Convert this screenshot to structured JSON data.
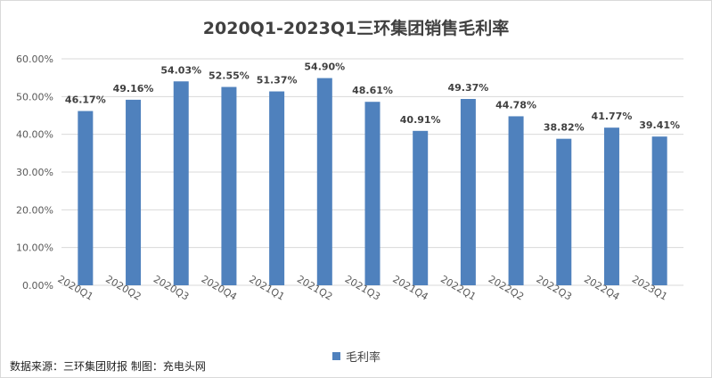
{
  "title": "2020Q1-2023Q1三环集团销售毛利率",
  "source_note": "数据来源：三环集团财报 制图：充电头网",
  "colors": {
    "bar": "#4f81bd",
    "grid": "#d9d9d9",
    "axis_text": "#595959",
    "label_text": "#404040"
  },
  "chart_data": {
    "type": "bar",
    "title": "2020Q1-2023Q1三环集团销售毛利率",
    "categories": [
      "2020Q1",
      "2020Q2",
      "2020Q3",
      "2020Q4",
      "2021Q1",
      "2021Q2",
      "2021Q3",
      "2021Q4",
      "2022Q1",
      "2022Q2",
      "2022Q3",
      "2022Q4",
      "2023Q1"
    ],
    "series": [
      {
        "name": "毛利率",
        "values": [
          46.17,
          49.16,
          54.03,
          52.55,
          51.37,
          54.9,
          48.61,
          40.91,
          49.37,
          44.78,
          38.82,
          41.77,
          39.41
        ]
      }
    ],
    "data_labels": [
      "46.17%",
      "49.16%",
      "54.03%",
      "52.55%",
      "51.37%",
      "54.90%",
      "48.61%",
      "40.91%",
      "49.37%",
      "44.78%",
      "38.82%",
      "41.77%",
      "39.41%"
    ],
    "y_ticks": [
      "0.00%",
      "10.00%",
      "20.00%",
      "30.00%",
      "40.00%",
      "50.00%",
      "60.00%"
    ],
    "ylim": [
      0,
      60
    ],
    "grid": true,
    "legend_position": "bottom"
  }
}
